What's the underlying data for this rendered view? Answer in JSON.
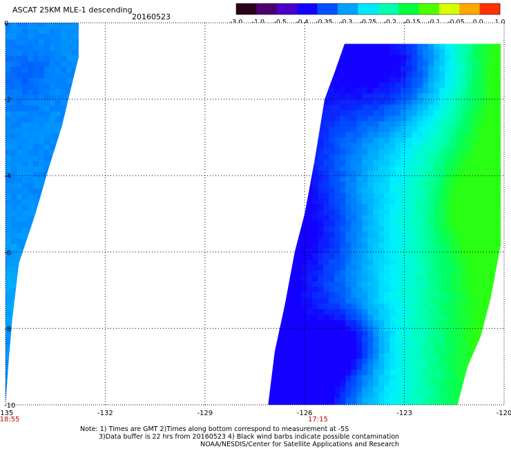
{
  "header": {
    "title": "ASCAT 25KM MLE-1 descending",
    "date": "20160523"
  },
  "colorbar": {
    "ticks": [
      "-3.0",
      "-1.0",
      "-0.5",
      "-0.4",
      "-0.35",
      "-0.3",
      "-0.25",
      "-0.2",
      "-0.15",
      "-0.1",
      "-0.05",
      "0.0",
      "1.0"
    ],
    "colors": [
      "#2a0018",
      "#4c0070",
      "#4a00c8",
      "#1400ff",
      "#0050ff",
      "#00a0ff",
      "#00e8ff",
      "#00ffb0",
      "#00ff40",
      "#50ff00",
      "#d8ff00",
      "#ffa800",
      "#ff3000"
    ]
  },
  "map": {
    "x_axis": {
      "range": [
        -135,
        -120
      ],
      "ticks": [
        -135,
        -132,
        -129,
        -126,
        -123,
        -120
      ]
    },
    "y_axis": {
      "range": [
        -10,
        0
      ],
      "ticks": [
        0,
        -2,
        -4,
        -6,
        -8,
        -10
      ]
    },
    "grid": "dotted",
    "swaths": [
      {
        "time": "18:55",
        "time_lon": -135,
        "poly": [
          [
            -135,
            0
          ],
          [
            -132.8,
            0
          ],
          [
            -132.8,
            -0.9
          ],
          [
            -133.0,
            -1.6
          ],
          [
            -133.3,
            -2.7
          ],
          [
            -133.7,
            -3.8
          ],
          [
            -134.1,
            -5.0
          ],
          [
            -134.6,
            -6.3
          ],
          [
            -134.8,
            -7.8
          ],
          [
            -134.9,
            -8.8
          ],
          [
            -135,
            -10
          ]
        ]
      },
      {
        "time": "17:15",
        "time_lon": -125.6,
        "poly": [
          [
            -124.8,
            -0.55
          ],
          [
            -120.1,
            -0.55
          ],
          [
            -120.1,
            -5.8
          ],
          [
            -120.4,
            -7.2
          ],
          [
            -120.7,
            -8.2
          ],
          [
            -121.1,
            -9.0
          ],
          [
            -121.4,
            -10
          ],
          [
            -127.1,
            -10
          ],
          [
            -126.9,
            -8.6
          ],
          [
            -126.6,
            -7.4
          ],
          [
            -126.3,
            -6.0
          ],
          [
            -126.0,
            -5.0
          ],
          [
            -125.7,
            -3.6
          ],
          [
            -125.4,
            -2.0
          ],
          [
            -125.1,
            -1.3
          ]
        ]
      }
    ]
  },
  "notes": [
    "Note: 1) Times are GMT 2)Times along bottom correspond to measurement at -5S",
    "3)Data buffer is 22 hrs from 20160523 4) Black wind barbs indicate possible contamination",
    "NOAA/NESDIS/Center for Satellite Applications and Research"
  ]
}
